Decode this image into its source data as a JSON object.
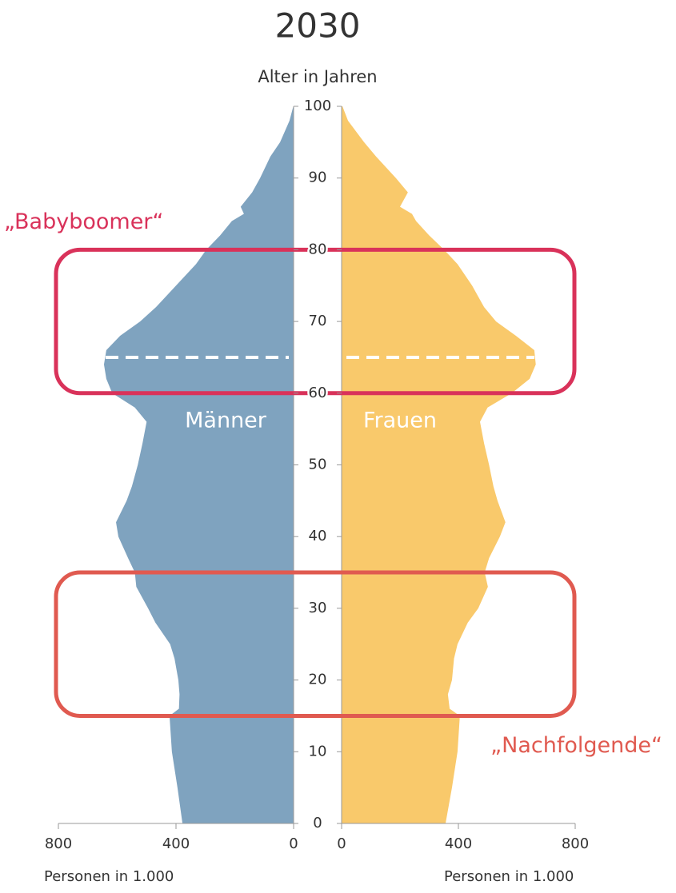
{
  "chart_data": {
    "type": "pyramid",
    "title": "2030",
    "ylabel": "Alter in Jahren",
    "xlabel": "Personen in 1.000",
    "ages": [
      0,
      5,
      10,
      15,
      16,
      18,
      20,
      23,
      25,
      28,
      30,
      33,
      35,
      37,
      40,
      42,
      45,
      47,
      50,
      53,
      56,
      58,
      60,
      62,
      64,
      66,
      68,
      70,
      72,
      75,
      78,
      80,
      82,
      84,
      85,
      86,
      88,
      90,
      93,
      95,
      98,
      100
    ],
    "series": [
      {
        "name": "Männer",
        "color": "#7fa3bf",
        "side": "left",
        "values": [
          378,
          395,
          414,
          422,
          390,
          388,
          392,
          405,
          420,
          470,
          495,
          535,
          540,
          563,
          596,
          604,
          568,
          550,
          530,
          514,
          500,
          540,
          617,
          637,
          645,
          637,
          590,
          522,
          468,
          400,
          332,
          297,
          250,
          210,
          169,
          180,
          141,
          114,
          79,
          46,
          14,
          1
        ]
      },
      {
        "name": "Frauen",
        "color": "#f9c96b",
        "side": "right",
        "values": [
          356,
          378,
          397,
          405,
          370,
          364,
          378,
          385,
          397,
          432,
          468,
          501,
          490,
          505,
          542,
          561,
          534,
          520,
          505,
          488,
          474,
          500,
          583,
          644,
          665,
          660,
          597,
          529,
          488,
          447,
          397,
          351,
          300,
          255,
          241,
          200,
          227,
          186,
          118,
          77,
          22,
          3
        ]
      }
    ],
    "xlim": [
      0,
      800
    ],
    "xticks": [
      0,
      400,
      800
    ],
    "ylim": [
      0,
      100
    ],
    "yticks": [
      0,
      10,
      20,
      30,
      40,
      50,
      60,
      70,
      80,
      90,
      100
    ],
    "annotations": [
      {
        "text": "„Babyboomer“",
        "color": "#d9325a",
        "from": 60,
        "to": 80,
        "line": 65
      },
      {
        "text": "„Nachfolgende“",
        "color": "#e05a50",
        "from": 15,
        "to": 35
      }
    ]
  }
}
